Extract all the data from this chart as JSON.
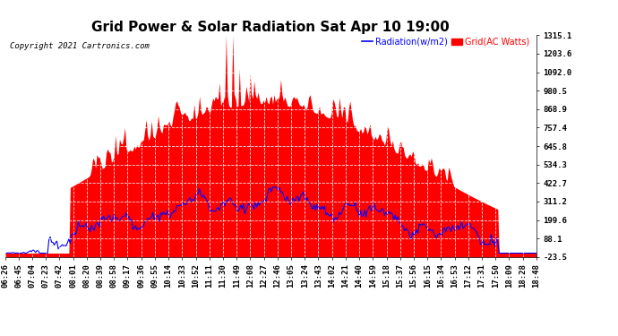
{
  "title": "Grid Power & Solar Radiation Sat Apr 10 19:00",
  "copyright": "Copyright 2021 Cartronics.com",
  "legend_radiation": "Radiation(w/m2)",
  "legend_grid": "Grid(AC Watts)",
  "y_ticks": [
    1315.1,
    1203.6,
    1092.0,
    980.5,
    868.9,
    757.4,
    645.8,
    534.3,
    422.7,
    311.2,
    199.6,
    88.1,
    -23.5
  ],
  "y_min": -23.5,
  "y_max": 1315.1,
  "x_labels": [
    "06:26",
    "06:45",
    "07:04",
    "07:23",
    "07:42",
    "08:01",
    "08:20",
    "08:39",
    "08:58",
    "09:17",
    "09:36",
    "09:55",
    "10:14",
    "10:33",
    "10:52",
    "11:11",
    "11:30",
    "11:49",
    "12:08",
    "12:27",
    "12:46",
    "13:05",
    "13:24",
    "13:43",
    "14:02",
    "14:21",
    "14:40",
    "14:59",
    "15:18",
    "15:37",
    "15:56",
    "16:15",
    "16:34",
    "16:53",
    "17:12",
    "17:31",
    "17:50",
    "18:09",
    "18:28",
    "18:48"
  ],
  "background_color": "#ffffff",
  "grid_color": "#aaaaaa",
  "radiation_color": "#0000ff",
  "grid_ac_color": "#ff0000",
  "title_fontsize": 11,
  "label_fontsize": 6.5,
  "copyright_fontsize": 6.5
}
